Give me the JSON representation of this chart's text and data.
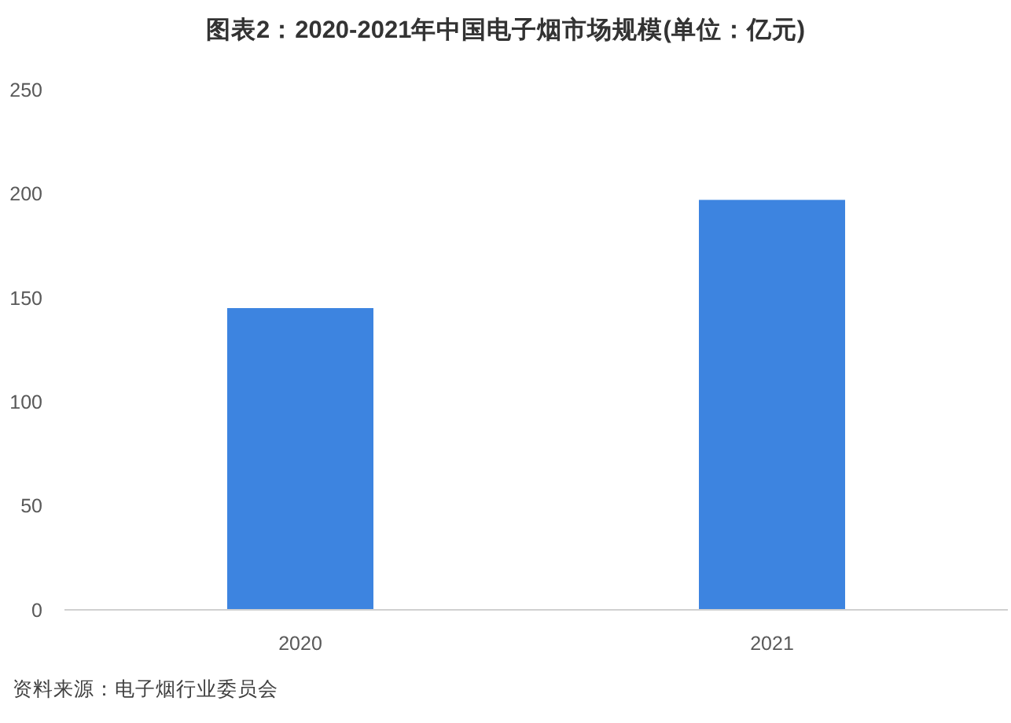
{
  "chart_data": {
    "type": "bar",
    "title": "图表2：2020-2021年中国电子烟市场规模(单位：亿元)",
    "categories": [
      "2020",
      "2021"
    ],
    "values": [
      145,
      197
    ],
    "color": "#3d84e0",
    "ylim": [
      0,
      250
    ],
    "yticks": [
      0,
      50,
      100,
      150,
      200,
      250
    ],
    "annotations": [
      "资料来源：电子烟行业委员会"
    ]
  }
}
